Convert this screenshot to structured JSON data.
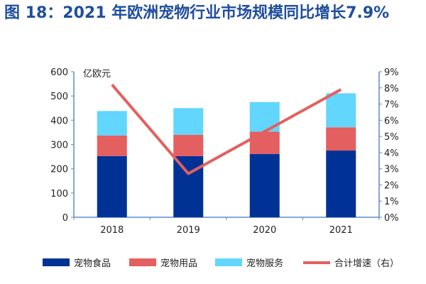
{
  "chart_data": {
    "type": "bar",
    "title": "图 18：2021 年欧洲宠物行业市场规模同比增长7.9%",
    "categories": [
      "2018",
      "2019",
      "2020",
      "2021"
    ],
    "ylabel": "亿欧元",
    "ylim": [
      0,
      600
    ],
    "yticks": [
      "0",
      "100",
      "200",
      "300",
      "400",
      "500",
      "600"
    ],
    "y2lim": [
      0,
      9
    ],
    "y2ticks": [
      "0%",
      "1%",
      "2%",
      "3%",
      "4%",
      "5%",
      "6%",
      "7%",
      "8%",
      "9%"
    ],
    "series": [
      {
        "name": "宠物食品",
        "type": "bar",
        "color": "#003296",
        "values": [
          252,
          252,
          261,
          275
        ]
      },
      {
        "name": "宠物用品",
        "type": "bar",
        "color": "#e45f5f",
        "values": [
          85,
          88,
          92,
          96
        ]
      },
      {
        "name": "宠物服务",
        "type": "bar",
        "color": "#62d6fc",
        "values": [
          101,
          110,
          122,
          140
        ]
      },
      {
        "name": "合计增速（右）",
        "type": "line",
        "color": "#e45f5f",
        "axis": "right",
        "values": [
          8.2,
          2.7,
          5.3,
          7.9
        ]
      }
    ],
    "legend": "bottom"
  }
}
